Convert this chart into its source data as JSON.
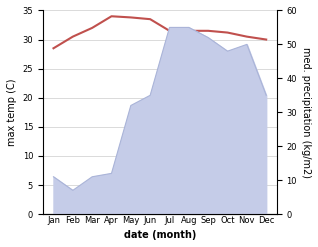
{
  "months": [
    "Jan",
    "Feb",
    "Mar",
    "Apr",
    "May",
    "Jun",
    "Jul",
    "Aug",
    "Sep",
    "Oct",
    "Nov",
    "Dec"
  ],
  "month_indices": [
    0,
    1,
    2,
    3,
    4,
    5,
    6,
    7,
    8,
    9,
    10,
    11
  ],
  "temperature": [
    28.5,
    30.5,
    32.0,
    34.0,
    33.8,
    33.5,
    31.5,
    31.5,
    31.5,
    31.2,
    30.5,
    30.0
  ],
  "precipitation": [
    11,
    7,
    11,
    12,
    32,
    35,
    55,
    55,
    52,
    48,
    50,
    35
  ],
  "temp_color": "#c0504d",
  "precip_fill_color": "#c5cce8",
  "precip_line_color": "#aab4d8",
  "temp_ylim": [
    0,
    35
  ],
  "precip_ylim": [
    0,
    60
  ],
  "temp_yticks": [
    0,
    5,
    10,
    15,
    20,
    25,
    30,
    35
  ],
  "precip_yticks": [
    0,
    10,
    20,
    30,
    40,
    50,
    60
  ],
  "xlabel": "date (month)",
  "ylabel_left": "max temp (C)",
  "ylabel_right": "med. precipitation (kg/m2)",
  "background_color": "#ffffff",
  "grid_color": "#cccccc"
}
